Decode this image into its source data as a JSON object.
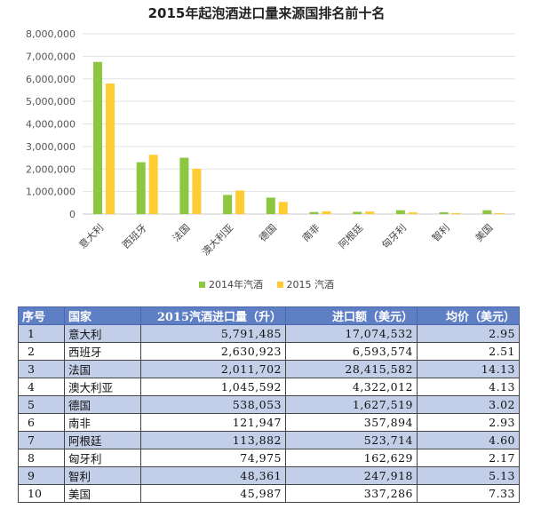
{
  "chart_data": {
    "type": "bar",
    "title": "2015年起泡酒进口量来源国排名前十名",
    "categories": [
      "意大利",
      "西班牙",
      "法国",
      "澳大利亚",
      "德国",
      "南非",
      "阿根廷",
      "匈牙利",
      "智利",
      "美国"
    ],
    "series": [
      {
        "name": "2014年汽酒",
        "color": "#8dc63f",
        "values": [
          6750000,
          2300000,
          2500000,
          850000,
          730000,
          90000,
          100000,
          170000,
          80000,
          170000
        ]
      },
      {
        "name": "2015 汽酒",
        "color": "#ffcc33",
        "values": [
          5791485,
          2630923,
          2011702,
          1045592,
          538053,
          121947,
          113882,
          74975,
          48361,
          45987
        ]
      }
    ],
    "ylim": [
      0,
      8000000
    ],
    "yticks": [
      "0",
      "1,000,000",
      "2,000,000",
      "3,000,000",
      "4,000,000",
      "5,000,000",
      "6,000,000",
      "7,000,000",
      "8,000,000"
    ],
    "grid": true,
    "legend_position": "bottom"
  },
  "table": {
    "headers": [
      "序号",
      "国家",
      "2015汽酒进口量（升）",
      "进口额（美元）",
      "均价（美元）"
    ],
    "rows": [
      [
        "1",
        "意大利",
        "5,791,485",
        "17,074,532",
        "2.95"
      ],
      [
        "2",
        "西班牙",
        "2,630,923",
        "6,593,574",
        "2.51"
      ],
      [
        "3",
        "法国",
        "2,011,702",
        "28,415,582",
        "14.13"
      ],
      [
        "4",
        "澳大利亚",
        "1,045,592",
        "4,322,012",
        "4.13"
      ],
      [
        "5",
        "德国",
        "538,053",
        "1,627,519",
        "3.02"
      ],
      [
        "6",
        "南非",
        "121,947",
        "357,894",
        "2.93"
      ],
      [
        "7",
        "阿根廷",
        "113,882",
        "523,714",
        "4.60"
      ],
      [
        "8",
        "匈牙利",
        "74,975",
        "162,629",
        "2.17"
      ],
      [
        "9",
        "智利",
        "48,361",
        "247,918",
        "5.13"
      ],
      [
        "10",
        "美国",
        "45,987",
        "337,286",
        "7.33"
      ]
    ]
  }
}
